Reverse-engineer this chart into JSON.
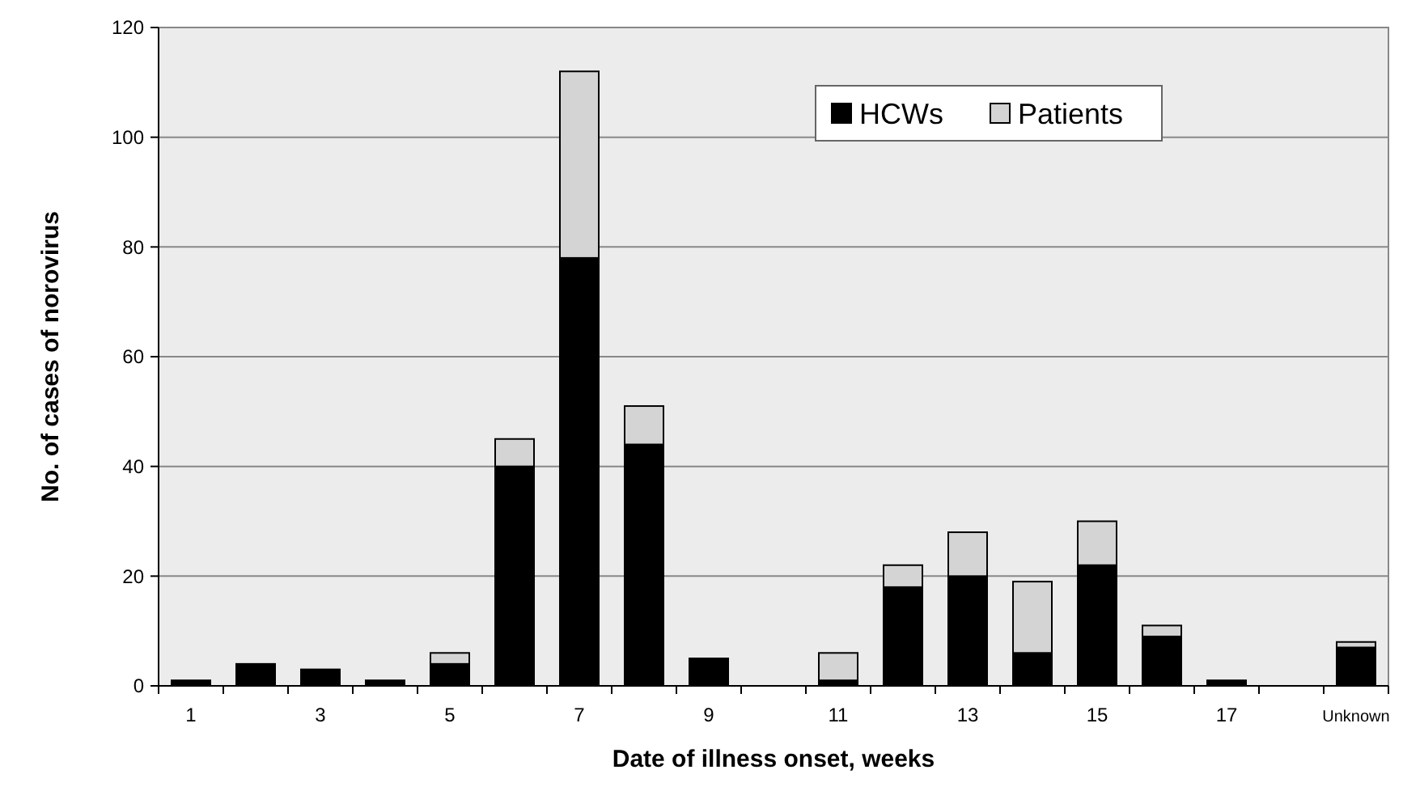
{
  "chart_data": {
    "type": "bar",
    "stacked": true,
    "xlabel": "Date of illness onset, weeks",
    "ylabel": "No. of cases of norovirus",
    "categories": [
      "1",
      null,
      "3",
      null,
      "5",
      null,
      "7",
      null,
      "9",
      null,
      "11",
      null,
      "13",
      null,
      "15",
      null,
      "17",
      null,
      "Unknown"
    ],
    "series": [
      {
        "name": "HCWs",
        "color": "#000000",
        "values": [
          1,
          4,
          3,
          1,
          4,
          40,
          78,
          44,
          5,
          0,
          1,
          18,
          20,
          6,
          22,
          9,
          1,
          null,
          7
        ]
      },
      {
        "name": "Patients",
        "color": "#d4d4d4",
        "values": [
          0,
          0,
          0,
          0,
          2,
          5,
          34,
          7,
          0,
          0,
          5,
          4,
          8,
          13,
          8,
          2,
          0,
          null,
          1
        ]
      }
    ],
    "ylim": [
      0,
      120
    ],
    "yticks": [
      0,
      20,
      40,
      60,
      80,
      100,
      120
    ],
    "grid": "y",
    "legend": "top right"
  }
}
